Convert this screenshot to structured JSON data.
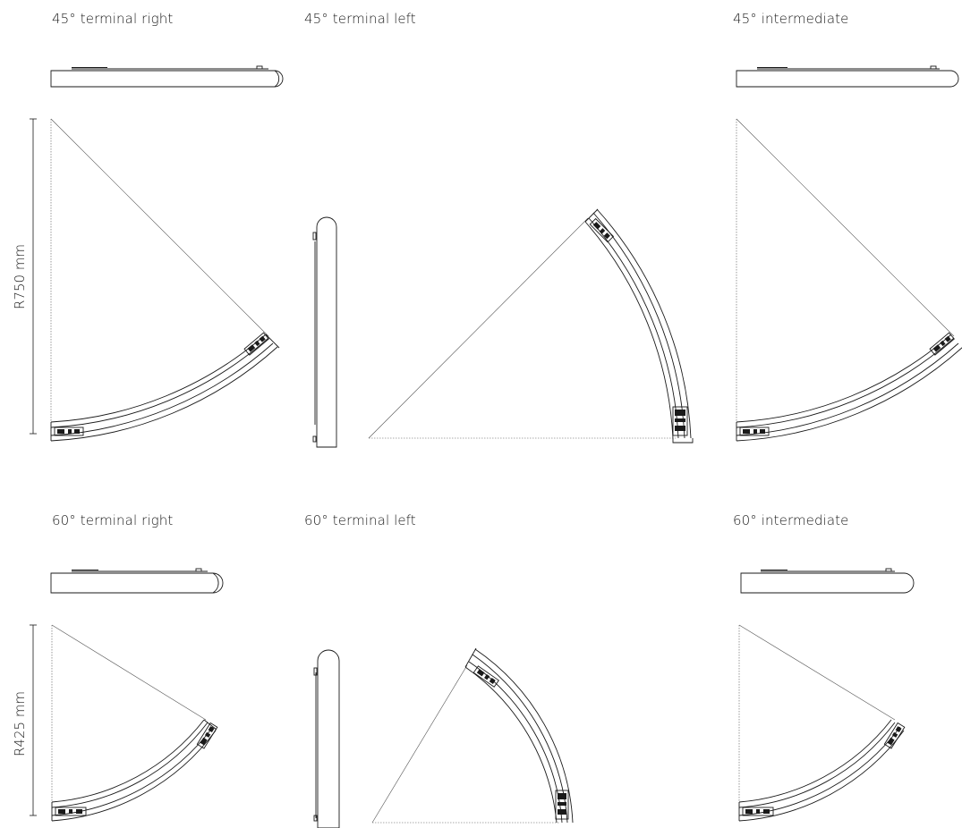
{
  "row_45": {
    "terminal_right": "45° terminal right",
    "terminal_left": "45° terminal left",
    "intermediate": "45° intermediate",
    "radius_label": "R750 mm"
  },
  "row_60": {
    "terminal_right": "60° terminal right",
    "terminal_left": "60° terminal left",
    "intermediate": "60° intermediate",
    "radius_label": "R425 mm"
  },
  "colors": {
    "line": "#1a1a1a",
    "guide": "#555555"
  }
}
